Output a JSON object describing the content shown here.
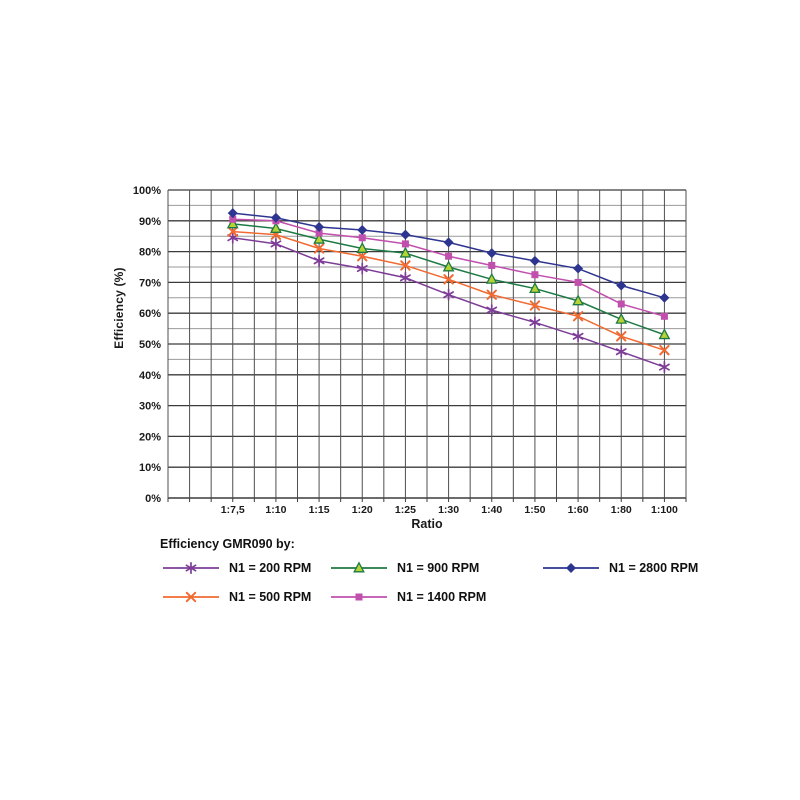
{
  "page": {
    "background": "#ffffff"
  },
  "chart_data": {
    "type": "line",
    "title": "",
    "xlabel": "Ratio",
    "ylabel": "Efficiency (%)",
    "legend_title": "Efficiency GMR090 by:",
    "legend_position": "bottom",
    "grid": true,
    "ylim": [
      0,
      100
    ],
    "y_major_step": 10,
    "y_minor_step": 5,
    "y_minor_range": [
      40,
      100
    ],
    "y_tick_labels": [
      "0%",
      "10%",
      "20%",
      "30%",
      "40%",
      "50%",
      "60%",
      "70%",
      "80%",
      "90%",
      "100%"
    ],
    "categories": [
      "1:7,5",
      "1:10",
      "1:15",
      "1:20",
      "1:25",
      "1:30",
      "1:40",
      "1:50",
      "1:60",
      "1:80",
      "1:100"
    ],
    "series": [
      {
        "name": "N1 = 200 RPM",
        "marker": "asterisk",
        "color": "#7d3d97",
        "marker_fill": "#7d3d97",
        "values": [
          84.5,
          82.5,
          77,
          74.5,
          71.5,
          66,
          61,
          57,
          52.5,
          47.5,
          42.5
        ]
      },
      {
        "name": "N1 = 500 RPM",
        "marker": "x",
        "color": "#f06a31",
        "marker_fill": "#f06a31",
        "values": [
          86.5,
          85.5,
          81,
          78.5,
          75.5,
          71,
          66,
          62.5,
          59,
          52.5,
          48
        ]
      },
      {
        "name": "N1 = 900 RPM",
        "marker": "triangle",
        "color": "#1e7a45",
        "marker_fill": "#b5d334",
        "values": [
          89,
          87.5,
          84,
          81,
          79.5,
          75,
          71,
          68,
          64,
          58,
          53
        ]
      },
      {
        "name": "N1 = 1400 RPM",
        "marker": "square",
        "color": "#c14fae",
        "marker_fill": "#c14fae",
        "values": [
          90.5,
          90,
          86,
          84.5,
          82.5,
          78.5,
          75.5,
          72.5,
          70,
          63,
          59
        ]
      },
      {
        "name": "N1 = 2800 RPM",
        "marker": "diamond",
        "color": "#2e3590",
        "marker_fill": "#2e3590",
        "values": [
          92.5,
          91,
          88,
          87,
          85.5,
          83,
          79.5,
          77,
          74.5,
          69,
          65
        ]
      }
    ],
    "colors": {
      "grid_major": "#3c3c3c",
      "grid_minor": "#9a9a9a",
      "grid_vertical": "#4f4f4f",
      "text": "#1a1a1a"
    }
  }
}
